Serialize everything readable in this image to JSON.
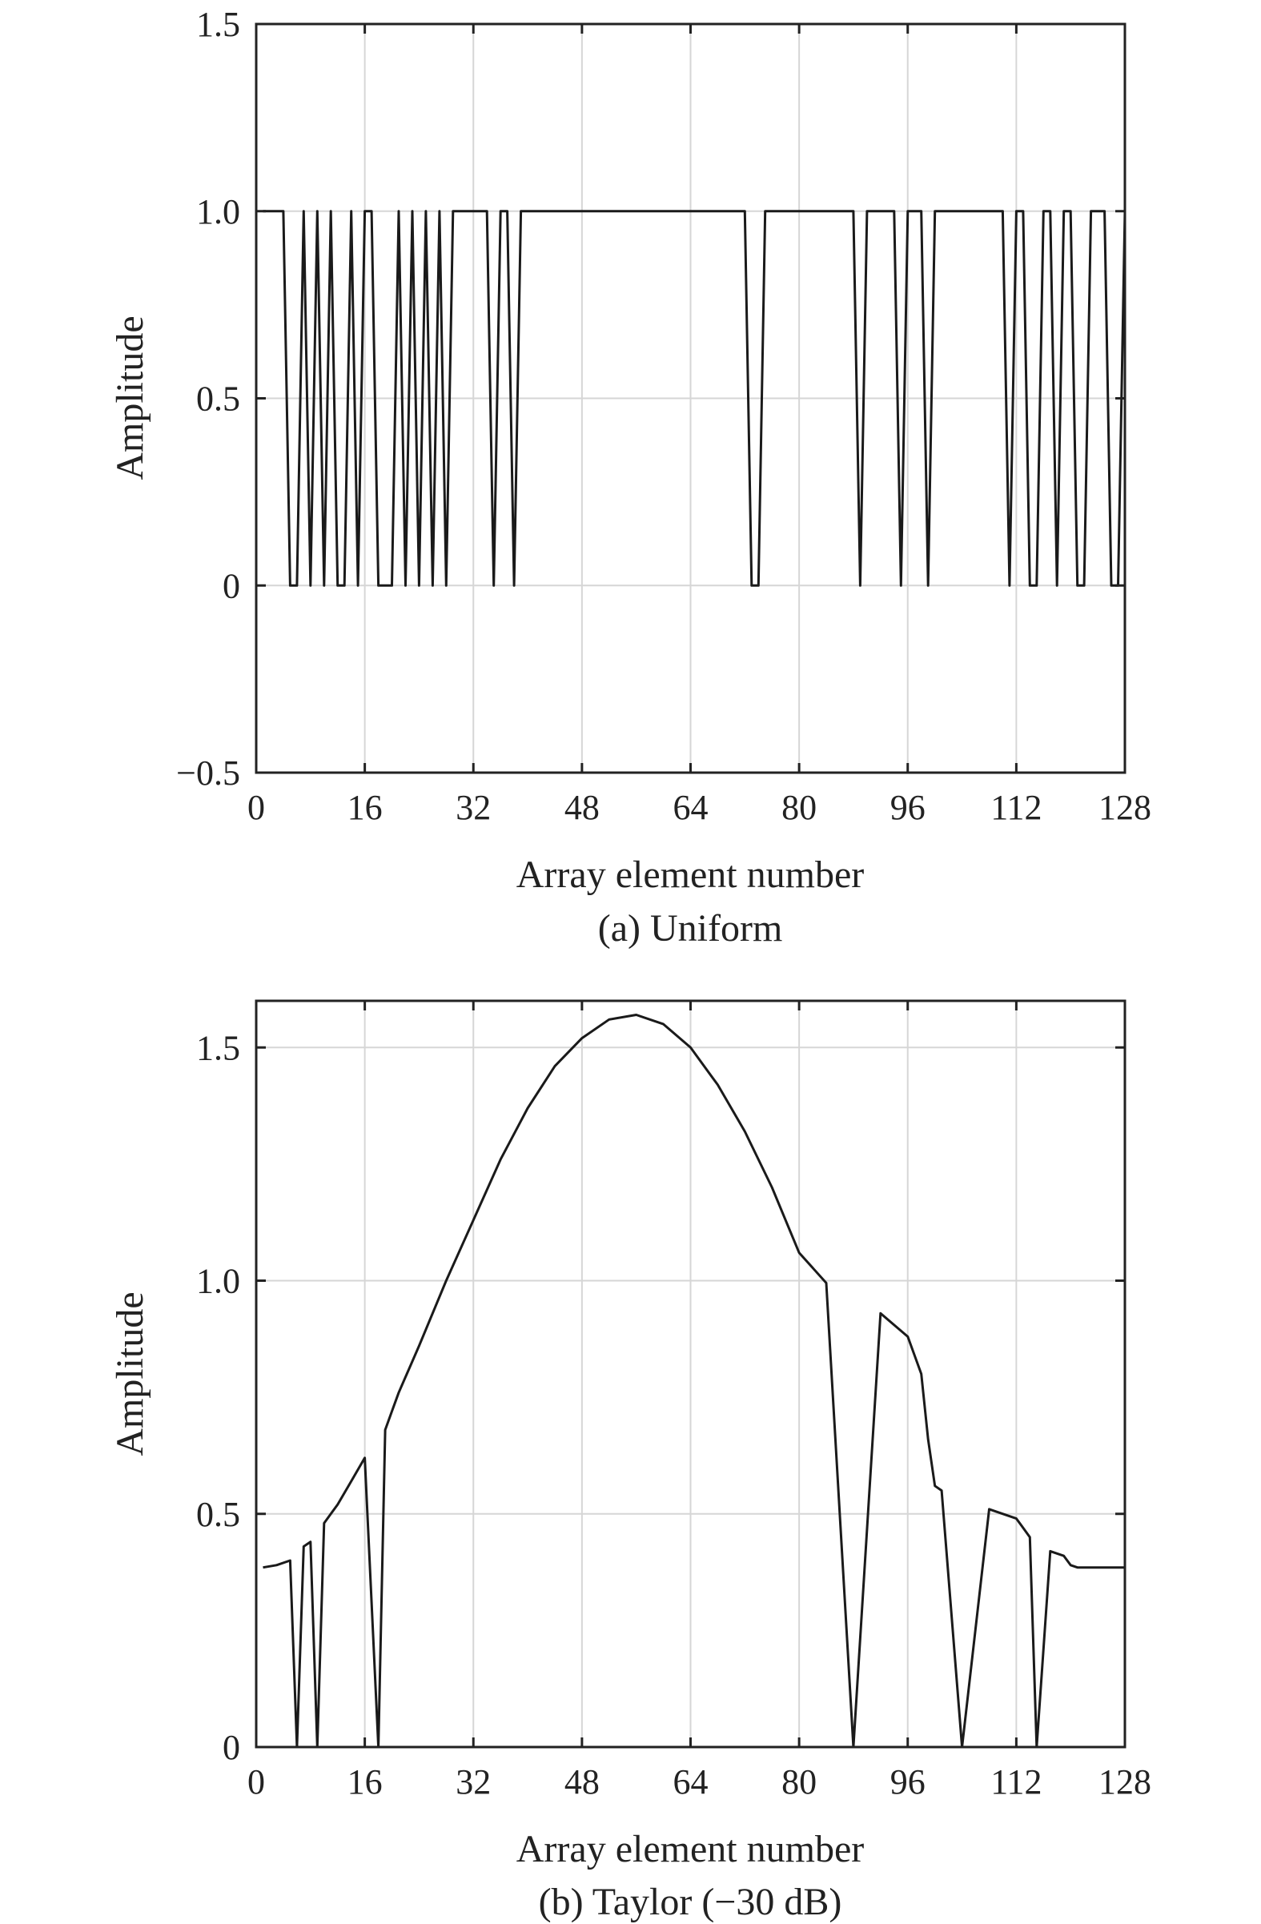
{
  "figure": {
    "panels_count": 2
  },
  "chart_data": [
    {
      "type": "line",
      "panel": "a",
      "caption": "(a) Uniform",
      "xlabel": "Array element number",
      "ylabel": "Amplitude",
      "xlim": [
        0,
        128
      ],
      "ylim": [
        -0.5,
        1.5
      ],
      "xticks": [
        0,
        16,
        32,
        48,
        64,
        80,
        96,
        112,
        128
      ],
      "xtick_labels": [
        "0",
        "16",
        "32",
        "48",
        "64",
        "80",
        "96",
        "112",
        "128"
      ],
      "yticks": [
        -0.5,
        0,
        0.5,
        1.0,
        1.5
      ],
      "ytick_labels": [
        "−0.5",
        "0",
        "0.5",
        "1.0",
        "1.5"
      ],
      "grid": true,
      "series": [
        {
          "name": "Uniform",
          "x": [
            1,
            2,
            3,
            4,
            5,
            6,
            7,
            8,
            9,
            10,
            11,
            12,
            13,
            14,
            15,
            16,
            17,
            18,
            19,
            20,
            21,
            22,
            23,
            24,
            25,
            26,
            27,
            28,
            29,
            30,
            31,
            32,
            33,
            34,
            35,
            36,
            37,
            38,
            39,
            40,
            41,
            42,
            43,
            44,
            45,
            46,
            47,
            48,
            49,
            50,
            51,
            52,
            53,
            54,
            55,
            56,
            57,
            58,
            59,
            60,
            61,
            62,
            63,
            64,
            65,
            66,
            67,
            68,
            69,
            70,
            71,
            72,
            73,
            74,
            75,
            76,
            77,
            78,
            79,
            80,
            81,
            82,
            83,
            84,
            85,
            86,
            87,
            88,
            89,
            90,
            91,
            92,
            93,
            94,
            95,
            96,
            97,
            98,
            99,
            100,
            101,
            102,
            103,
            104,
            105,
            106,
            107,
            108,
            109,
            110,
            111,
            112,
            113,
            114,
            115,
            116,
            117,
            118,
            119,
            120,
            121,
            122,
            123,
            124,
            125,
            126,
            127,
            128
          ],
          "values": [
            1,
            1,
            1,
            1,
            0,
            0,
            1,
            0,
            1,
            0,
            1,
            0,
            0,
            1,
            0,
            1,
            1,
            0,
            0,
            0,
            1,
            0,
            1,
            0,
            1,
            0,
            1,
            0,
            1,
            1,
            1,
            1,
            1,
            1,
            0,
            1,
            1,
            0,
            1,
            1,
            1,
            1,
            1,
            1,
            1,
            1,
            1,
            1,
            1,
            1,
            1,
            1,
            1,
            1,
            1,
            1,
            1,
            1,
            1,
            1,
            1,
            1,
            1,
            1,
            1,
            1,
            1,
            1,
            1,
            1,
            1,
            1,
            0,
            0,
            1,
            1,
            1,
            1,
            1,
            1,
            1,
            1,
            1,
            1,
            1,
            1,
            1,
            1,
            0,
            1,
            1,
            1,
            1,
            1,
            0,
            1,
            1,
            1,
            0,
            1,
            1,
            1,
            1,
            1,
            1,
            1,
            1,
            1,
            1,
            1,
            0,
            1,
            1,
            0,
            0,
            1,
            1,
            0,
            1,
            1,
            0,
            0,
            1,
            1,
            1,
            0,
            0,
            1
          ]
        }
      ]
    },
    {
      "type": "line",
      "panel": "b",
      "caption": "(b) Taylor (−30 dB)",
      "xlabel": "Array element number",
      "ylabel": "Amplitude",
      "xlim": [
        0,
        128
      ],
      "ylim": [
        0,
        1.6
      ],
      "xticks": [
        0,
        16,
        32,
        48,
        64,
        80,
        96,
        112,
        128
      ],
      "xtick_labels": [
        "0",
        "16",
        "32",
        "48",
        "64",
        "80",
        "96",
        "112",
        "128"
      ],
      "yticks": [
        0,
        0.5,
        1.0,
        1.5
      ],
      "ytick_labels": [
        "0",
        "0.5",
        "1.0",
        "1.5"
      ],
      "grid": true,
      "series": [
        {
          "name": "Taylor (−30 dB)",
          "x": [
            1,
            3,
            5,
            6,
            7,
            8,
            9,
            10,
            11,
            12,
            14,
            16,
            18,
            19,
            20,
            21,
            24,
            28,
            32,
            36,
            40,
            44,
            48,
            52,
            56,
            60,
            64,
            68,
            72,
            76,
            80,
            84,
            88,
            92,
            96,
            98,
            99,
            100,
            101,
            104,
            108,
            112,
            113,
            114,
            115,
            117,
            119,
            120,
            121,
            122,
            124,
            126,
            128
          ],
          "values": [
            0.385,
            0.39,
            0.4,
            0.0,
            0.43,
            0.44,
            0.0,
            0.48,
            0.5,
            0.52,
            0.57,
            0.62,
            0.0,
            0.68,
            0.72,
            0.76,
            0.86,
            1.0,
            1.13,
            1.26,
            1.37,
            1.46,
            1.52,
            1.56,
            1.57,
            1.55,
            1.5,
            1.42,
            1.32,
            1.2,
            1.06,
            0.995,
            0.0,
            0.93,
            0.88,
            0.8,
            0.66,
            0.56,
            0.55,
            0.0,
            0.51,
            0.49,
            0.47,
            0.45,
            0.0,
            0.42,
            0.41,
            0.39,
            0.385,
            0.385,
            0.385,
            0.385,
            0.385
          ]
        }
      ]
    }
  ]
}
